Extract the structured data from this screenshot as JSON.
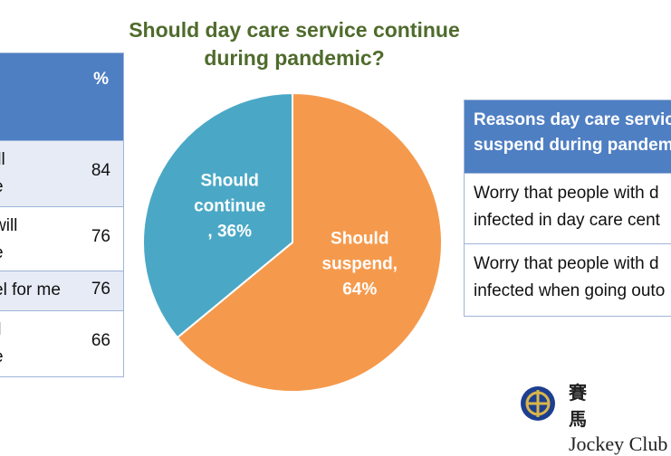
{
  "chart_data": {
    "type": "pie",
    "title_line1": "Should day care service continue",
    "title_line2": "during pandemic?",
    "slices": [
      {
        "label_line1": "Should",
        "label_line2": "continue",
        "label_line3": ", 36%",
        "value": 36,
        "color": "#4aa8c6"
      },
      {
        "label_line1": "Should",
        "label_line2": "suspend,",
        "label_line3": "64%",
        "value": 64,
        "color": "#f59a4d"
      }
    ]
  },
  "left_table": {
    "header_pct": "%",
    "rows": [
      {
        "text_line1": "ill",
        "text_line2": "e",
        "value": "84"
      },
      {
        "text_line1": "will",
        "text_line2": "e",
        "value": "76"
      },
      {
        "text_line1": "el for me",
        "text_line2": "",
        "value": "76"
      },
      {
        "text_line1": "ll",
        "text_line2": "e",
        "value": "66"
      }
    ]
  },
  "right_table": {
    "header_line1": "Reasons day care servic",
    "header_line2": "suspend during pandem",
    "rows": [
      {
        "line1": "Worry that people with d",
        "line2": "infected in day care cent"
      },
      {
        "line1": "Worry that people with d",
        "line2": "infected when going outo"
      }
    ]
  },
  "logo": {
    "chinese": "賽馬",
    "name": "Jockey Club"
  },
  "colors": {
    "header_blue": "#4f7fc3",
    "title_green": "#4f6b2c"
  }
}
